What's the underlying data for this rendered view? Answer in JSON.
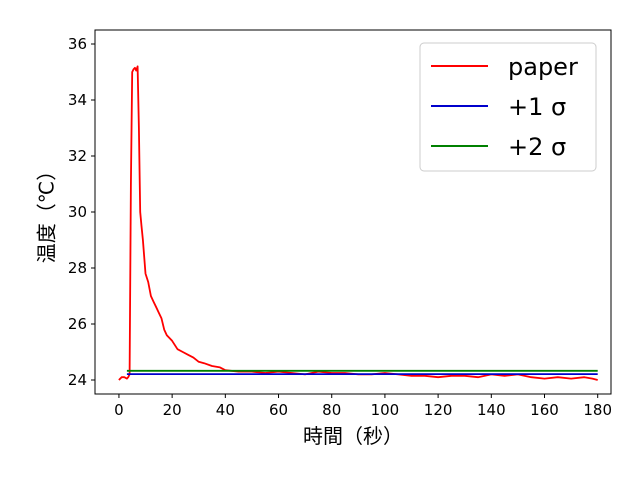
{
  "chart_data": {
    "type": "line",
    "xlabel": "時間（秒）",
    "ylabel": "温度（℃）",
    "xlim": [
      -9,
      185
    ],
    "ylim": [
      23.5,
      36.5
    ],
    "xticks": [
      0,
      20,
      40,
      60,
      80,
      100,
      120,
      140,
      160,
      180
    ],
    "yticks": [
      24,
      26,
      28,
      30,
      32,
      34,
      36
    ],
    "legend_position": "top-right",
    "series": [
      {
        "name": "paper",
        "color": "#ff0000",
        "x": [
          0,
          1,
          2,
          3,
          3.5,
          4,
          4.5,
          5,
          5.5,
          6,
          6.5,
          7,
          7.5,
          8,
          8.5,
          9,
          10,
          11,
          12,
          13,
          14,
          15,
          16,
          17,
          18,
          20,
          22,
          24,
          26,
          28,
          30,
          32,
          35,
          38,
          40,
          45,
          50,
          55,
          60,
          65,
          70,
          75,
          80,
          85,
          90,
          95,
          100,
          105,
          110,
          115,
          120,
          125,
          130,
          135,
          140,
          145,
          150,
          155,
          160,
          165,
          170,
          175,
          178,
          180
        ],
        "y": [
          24.0,
          24.1,
          24.1,
          24.05,
          24.1,
          24.2,
          31.0,
          35.0,
          35.1,
          35.15,
          35.05,
          35.2,
          33.0,
          30.0,
          29.5,
          29.0,
          27.8,
          27.5,
          27.0,
          26.8,
          26.6,
          26.4,
          26.2,
          25.8,
          25.6,
          25.4,
          25.1,
          25.0,
          24.9,
          24.8,
          24.65,
          24.6,
          24.5,
          24.45,
          24.35,
          24.3,
          24.3,
          24.25,
          24.3,
          24.25,
          24.2,
          24.3,
          24.25,
          24.25,
          24.2,
          24.2,
          24.25,
          24.2,
          24.15,
          24.15,
          24.1,
          24.15,
          24.15,
          24.1,
          24.2,
          24.15,
          24.2,
          24.1,
          24.05,
          24.1,
          24.05,
          24.1,
          24.05,
          24.0
        ]
      },
      {
        "name": "+1 σ",
        "color": "#0000cc",
        "x": [
          3,
          180
        ],
        "y": [
          24.21,
          24.21
        ]
      },
      {
        "name": "+2 σ",
        "color": "#008000",
        "x": [
          3,
          180
        ],
        "y": [
          24.33,
          24.33
        ]
      }
    ]
  }
}
